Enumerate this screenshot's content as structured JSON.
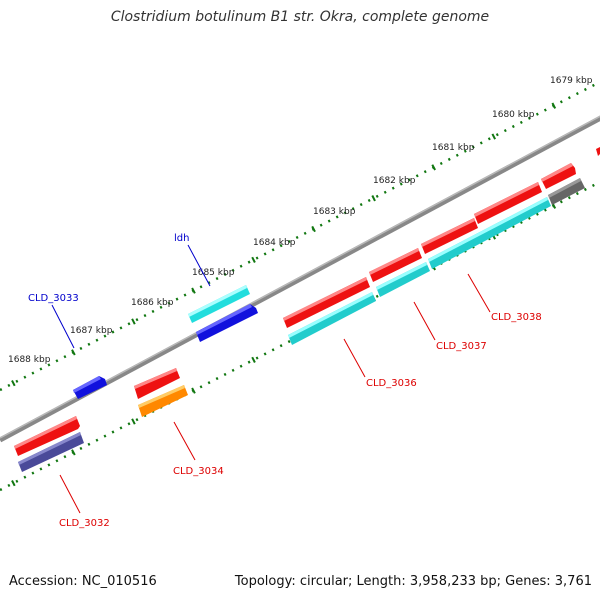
{
  "title": "Clostridium botulinum B1 str. Okra, complete genome",
  "footer": {
    "accession": "Accession: NC_010516",
    "summary": "Topology: circular; Length: 3,958,233 bp; Genes: 3,761"
  },
  "ruler_labels": [
    "1679 kbp",
    "1680 kbp",
    "1681 kbp",
    "1682 kbp",
    "1683 kbp",
    "1684 kbp",
    "1685 kbp",
    "1686 kbp",
    "1687 kbp",
    "1688 kbp"
  ],
  "gene_labels": {
    "ldh": "ldh",
    "cld3033": "CLD_3033",
    "cld3032": "CLD_3032",
    "cld3034": "CLD_3034",
    "cld3036": "CLD_3036",
    "cld3037": "CLD_3037",
    "cld3038": "CLD_3038"
  },
  "colors": {
    "forward_strand_label": "#0000cc",
    "reverse_strand_label": "#dd0000",
    "red_gene": "#ee1111",
    "cyan_gene": "#22cccc",
    "blue_gene": "#1111dd",
    "orange_gene": "#ff8800",
    "purple_gene": "#4a4a99",
    "gray_gene": "#666666",
    "backbone": "#888888",
    "ruler": "#117711"
  }
}
